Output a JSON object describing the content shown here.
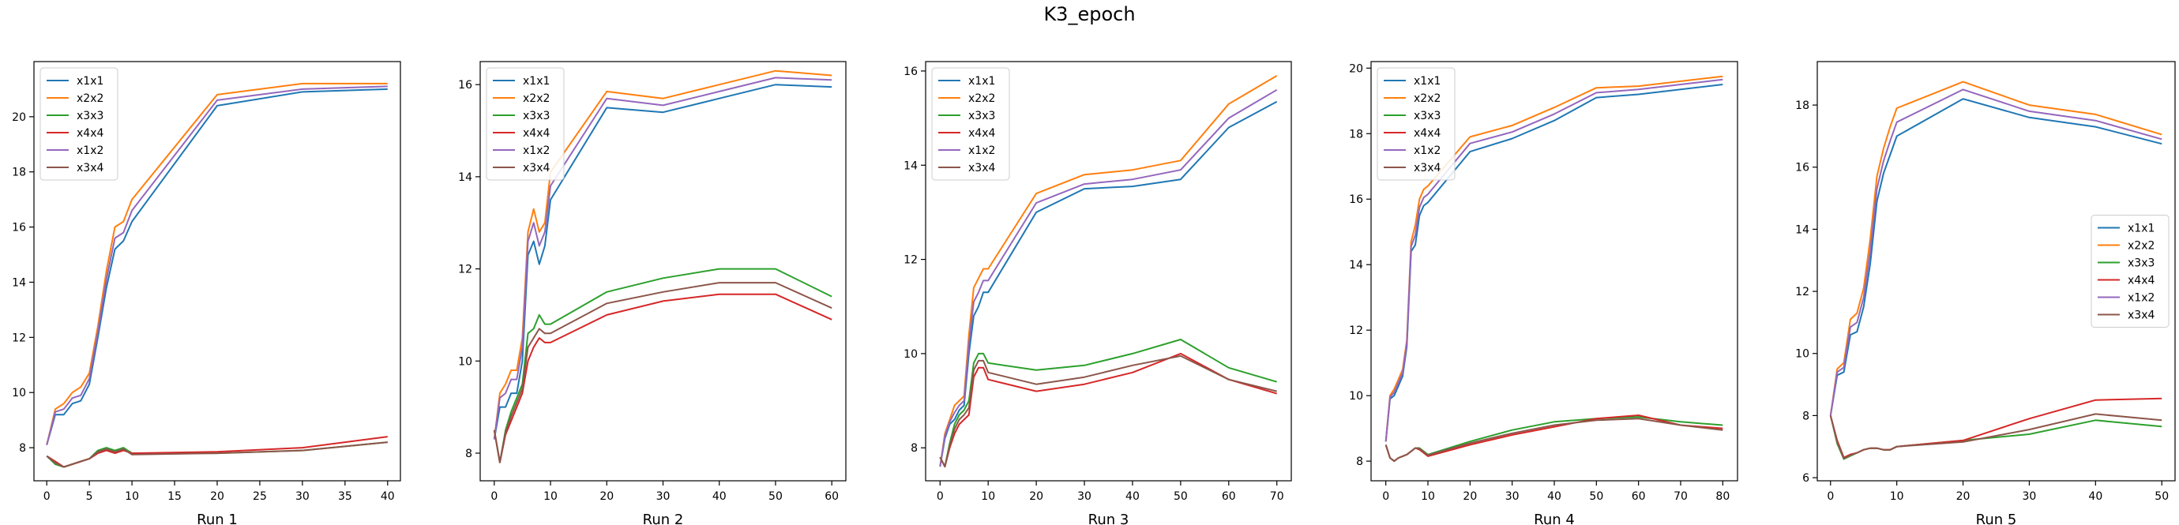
{
  "figure": {
    "title": "K3_epoch"
  },
  "series_names": [
    "x1x1",
    "x2x2",
    "x3x3",
    "x4x4",
    "x1x2",
    "x3x4"
  ],
  "colors": [
    "#1f77b4",
    "#ff7f0e",
    "#2ca02c",
    "#d62728",
    "#9467bd",
    "#8c564b"
  ],
  "chart_data": [
    {
      "type": "line",
      "xlabel": "Run 1",
      "ylabel": "",
      "legend": "upper-left",
      "grid": false,
      "xlim": [
        -1.5,
        41.5
      ],
      "ylim": [
        6.8,
        22.0
      ],
      "xticks": [
        0,
        5,
        10,
        15,
        20,
        25,
        30,
        35,
        40
      ],
      "yticks": [
        8,
        10,
        12,
        14,
        16,
        18,
        20
      ],
      "x": [
        0,
        1,
        2,
        3,
        4,
        5,
        6,
        7,
        8,
        9,
        10,
        20,
        30,
        40
      ],
      "series": [
        {
          "name": "x1x1",
          "values": [
            8.1,
            9.2,
            9.2,
            9.6,
            9.7,
            10.3,
            12.0,
            13.8,
            15.2,
            15.5,
            16.2,
            20.4,
            20.9,
            21.0
          ]
        },
        {
          "name": "x2x2",
          "values": [
            8.1,
            9.4,
            9.6,
            10.0,
            10.2,
            10.7,
            12.4,
            14.4,
            16.0,
            16.2,
            17.0,
            20.8,
            21.2,
            21.2
          ]
        },
        {
          "name": "x3x3",
          "values": [
            7.7,
            7.4,
            7.3,
            7.4,
            7.5,
            7.6,
            7.9,
            8.0,
            7.9,
            8.0,
            7.8,
            7.8,
            7.9,
            8.2
          ]
        },
        {
          "name": "x4x4",
          "values": [
            7.7,
            7.5,
            7.3,
            7.4,
            7.5,
            7.6,
            7.8,
            7.9,
            7.8,
            7.9,
            7.8,
            7.85,
            8.0,
            8.4
          ]
        },
        {
          "name": "x1x2",
          "values": [
            8.1,
            9.3,
            9.4,
            9.8,
            9.9,
            10.5,
            12.2,
            14.1,
            15.6,
            15.8,
            16.6,
            20.6,
            21.0,
            21.1
          ]
        },
        {
          "name": "x3x4",
          "values": [
            7.7,
            7.45,
            7.3,
            7.4,
            7.5,
            7.6,
            7.85,
            7.95,
            7.85,
            7.95,
            7.75,
            7.8,
            7.9,
            8.2
          ]
        }
      ]
    },
    {
      "type": "line",
      "xlabel": "Run 2",
      "ylabel": "",
      "legend": "upper-left",
      "grid": false,
      "xlim": [
        -2.5,
        62.5
      ],
      "ylim": [
        7.4,
        16.5
      ],
      "xticks": [
        0,
        10,
        20,
        30,
        40,
        50,
        60
      ],
      "yticks": [
        8,
        10,
        12,
        14,
        16
      ],
      "x": [
        0,
        1,
        2,
        3,
        4,
        5,
        6,
        7,
        8,
        9,
        10,
        20,
        30,
        40,
        50,
        60
      ],
      "series": [
        {
          "name": "x1x1",
          "values": [
            8.3,
            9.0,
            9.0,
            9.3,
            9.3,
            10.0,
            12.3,
            12.6,
            12.1,
            12.5,
            13.5,
            15.5,
            15.4,
            15.7,
            16.0,
            15.95
          ]
        },
        {
          "name": "x2x2",
          "values": [
            8.3,
            9.3,
            9.5,
            9.8,
            9.8,
            10.5,
            12.8,
            13.3,
            12.8,
            13.0,
            14.1,
            15.85,
            15.7,
            16.0,
            16.3,
            16.2
          ]
        },
        {
          "name": "x3x3",
          "values": [
            8.5,
            7.8,
            8.5,
            8.9,
            9.2,
            9.5,
            10.6,
            10.7,
            11.0,
            10.8,
            10.8,
            11.5,
            11.8,
            12.0,
            12.0,
            11.4
          ]
        },
        {
          "name": "x4x4",
          "values": [
            8.5,
            7.8,
            8.4,
            8.7,
            9.0,
            9.3,
            10.0,
            10.3,
            10.5,
            10.4,
            10.4,
            11.0,
            11.3,
            11.45,
            11.45,
            10.9
          ]
        },
        {
          "name": "x1x2",
          "values": [
            8.3,
            9.2,
            9.3,
            9.6,
            9.6,
            10.3,
            12.6,
            13.0,
            12.5,
            12.8,
            13.8,
            15.7,
            15.55,
            15.85,
            16.15,
            16.1
          ]
        },
        {
          "name": "x3x4",
          "values": [
            8.5,
            7.8,
            8.45,
            8.8,
            9.1,
            9.4,
            10.3,
            10.5,
            10.7,
            10.6,
            10.6,
            11.25,
            11.5,
            11.7,
            11.7,
            11.15
          ]
        }
      ]
    },
    {
      "type": "line",
      "xlabel": "Run 3",
      "ylabel": "",
      "legend": "upper-left",
      "grid": false,
      "xlim": [
        -3.0,
        73.0
      ],
      "ylim": [
        7.3,
        16.2
      ],
      "xticks": [
        0,
        10,
        20,
        30,
        40,
        50,
        60,
        70
      ],
      "yticks": [
        8,
        10,
        12,
        14,
        16
      ],
      "x": [
        0,
        1,
        2,
        3,
        4,
        5,
        6,
        7,
        8,
        9,
        10,
        20,
        30,
        40,
        50,
        60,
        70
      ],
      "series": [
        {
          "name": "x1x1",
          "values": [
            7.6,
            8.2,
            8.5,
            8.6,
            8.8,
            8.9,
            10.0,
            10.8,
            11.0,
            11.3,
            11.3,
            13.0,
            13.5,
            13.55,
            13.7,
            14.8,
            15.35
          ]
        },
        {
          "name": "x2x2",
          "values": [
            7.6,
            8.3,
            8.6,
            8.9,
            9.0,
            9.1,
            10.4,
            11.4,
            11.6,
            11.8,
            11.8,
            13.4,
            13.8,
            13.9,
            14.1,
            15.3,
            15.9
          ]
        },
        {
          "name": "x3x3",
          "values": [
            7.8,
            7.6,
            8.1,
            8.5,
            8.7,
            8.8,
            9.0,
            9.8,
            10.0,
            10.0,
            9.8,
            9.65,
            9.75,
            10.0,
            10.3,
            9.7,
            9.4
          ]
        },
        {
          "name": "x4x4",
          "values": [
            7.8,
            7.6,
            8.0,
            8.3,
            8.5,
            8.6,
            8.7,
            9.5,
            9.7,
            9.7,
            9.45,
            9.2,
            9.35,
            9.6,
            10.0,
            9.45,
            9.15
          ]
        },
        {
          "name": "x1x2",
          "values": [
            7.6,
            8.25,
            8.55,
            8.75,
            8.9,
            9.0,
            10.2,
            11.1,
            11.3,
            11.55,
            11.55,
            13.2,
            13.6,
            13.7,
            13.9,
            15.0,
            15.6
          ]
        },
        {
          "name": "x3x4",
          "values": [
            7.8,
            7.6,
            8.05,
            8.4,
            8.6,
            8.7,
            8.85,
            9.65,
            9.85,
            9.85,
            9.6,
            9.35,
            9.5,
            9.75,
            9.95,
            9.45,
            9.2
          ]
        }
      ]
    },
    {
      "type": "line",
      "xlabel": "Run 4",
      "ylabel": "",
      "legend": "upper-left",
      "grid": false,
      "xlim": [
        -3.5,
        83.5
      ],
      "ylim": [
        7.4,
        20.2
      ],
      "xticks": [
        0,
        10,
        20,
        30,
        40,
        50,
        60,
        70,
        80
      ],
      "yticks": [
        8,
        10,
        12,
        14,
        16,
        18,
        20
      ],
      "x": [
        0,
        1,
        2,
        3,
        4,
        5,
        6,
        7,
        8,
        9,
        10,
        20,
        30,
        40,
        50,
        60,
        70,
        80
      ],
      "series": [
        {
          "name": "x1x1",
          "values": [
            8.6,
            9.9,
            10.0,
            10.3,
            10.6,
            11.5,
            14.4,
            14.6,
            15.5,
            15.8,
            15.9,
            17.45,
            17.85,
            18.4,
            19.1,
            19.2,
            19.35,
            19.5
          ]
        },
        {
          "name": "x2x2",
          "values": [
            8.6,
            10.0,
            10.2,
            10.5,
            10.8,
            11.7,
            14.7,
            15.2,
            16.0,
            16.3,
            16.4,
            17.9,
            18.25,
            18.8,
            19.4,
            19.45,
            19.6,
            19.75
          ]
        },
        {
          "name": "x3x3",
          "values": [
            8.5,
            8.1,
            8.0,
            8.1,
            8.15,
            8.2,
            8.3,
            8.4,
            8.4,
            8.3,
            8.2,
            8.6,
            8.95,
            9.2,
            9.3,
            9.35,
            9.2,
            9.1
          ]
        },
        {
          "name": "x4x4",
          "values": [
            8.5,
            8.1,
            8.0,
            8.1,
            8.15,
            8.2,
            8.3,
            8.4,
            8.35,
            8.25,
            8.15,
            8.5,
            8.8,
            9.05,
            9.3,
            9.4,
            9.1,
            9.0
          ]
        },
        {
          "name": "x1x2",
          "values": [
            8.6,
            9.95,
            10.1,
            10.4,
            10.7,
            11.6,
            14.55,
            14.9,
            15.75,
            16.05,
            16.15,
            17.7,
            18.05,
            18.6,
            19.25,
            19.35,
            19.5,
            19.65
          ]
        },
        {
          "name": "x3x4",
          "values": [
            8.5,
            8.1,
            8.0,
            8.1,
            8.15,
            8.2,
            8.3,
            8.4,
            8.38,
            8.28,
            8.18,
            8.55,
            8.85,
            9.1,
            9.25,
            9.3,
            9.1,
            8.95
          ]
        }
      ]
    },
    {
      "type": "line",
      "xlabel": "Run 5",
      "ylabel": "",
      "legend": "center-right",
      "grid": false,
      "xlim": [
        -2.0,
        52.0
      ],
      "ylim": [
        5.9,
        19.4
      ],
      "xticks": [
        0,
        10,
        20,
        30,
        40,
        50
      ],
      "yticks": [
        6,
        8,
        10,
        12,
        14,
        16,
        18
      ],
      "x": [
        0,
        1,
        2,
        3,
        4,
        5,
        6,
        7,
        8,
        9,
        10,
        20,
        30,
        40,
        50
      ],
      "series": [
        {
          "name": "x1x1",
          "values": [
            8.0,
            9.3,
            9.4,
            10.6,
            10.7,
            11.5,
            12.9,
            14.9,
            15.8,
            16.4,
            17.0,
            18.2,
            17.6,
            17.3,
            16.75
          ]
        },
        {
          "name": "x2x2",
          "values": [
            8.0,
            9.5,
            9.7,
            11.1,
            11.3,
            12.1,
            13.7,
            15.7,
            16.6,
            17.3,
            17.9,
            18.75,
            18.0,
            17.7,
            17.05
          ]
        },
        {
          "name": "x3x3",
          "values": [
            8.0,
            7.1,
            6.6,
            6.7,
            6.8,
            6.9,
            6.95,
            6.95,
            6.9,
            6.9,
            7.0,
            7.2,
            7.4,
            7.85,
            7.65
          ]
        },
        {
          "name": "x4x4",
          "values": [
            8.0,
            7.2,
            6.65,
            6.75,
            6.8,
            6.9,
            6.95,
            6.95,
            6.9,
            6.9,
            7.0,
            7.2,
            7.9,
            8.5,
            8.55
          ]
        },
        {
          "name": "x1x2",
          "values": [
            8.0,
            9.4,
            9.55,
            10.85,
            11.0,
            11.8,
            13.3,
            15.3,
            16.2,
            16.85,
            17.45,
            18.5,
            17.8,
            17.5,
            16.9
          ]
        },
        {
          "name": "x3x4",
          "values": [
            8.0,
            7.15,
            6.62,
            6.72,
            6.8,
            6.9,
            6.95,
            6.95,
            6.9,
            6.9,
            7.0,
            7.15,
            7.55,
            8.05,
            7.85
          ]
        }
      ]
    }
  ]
}
